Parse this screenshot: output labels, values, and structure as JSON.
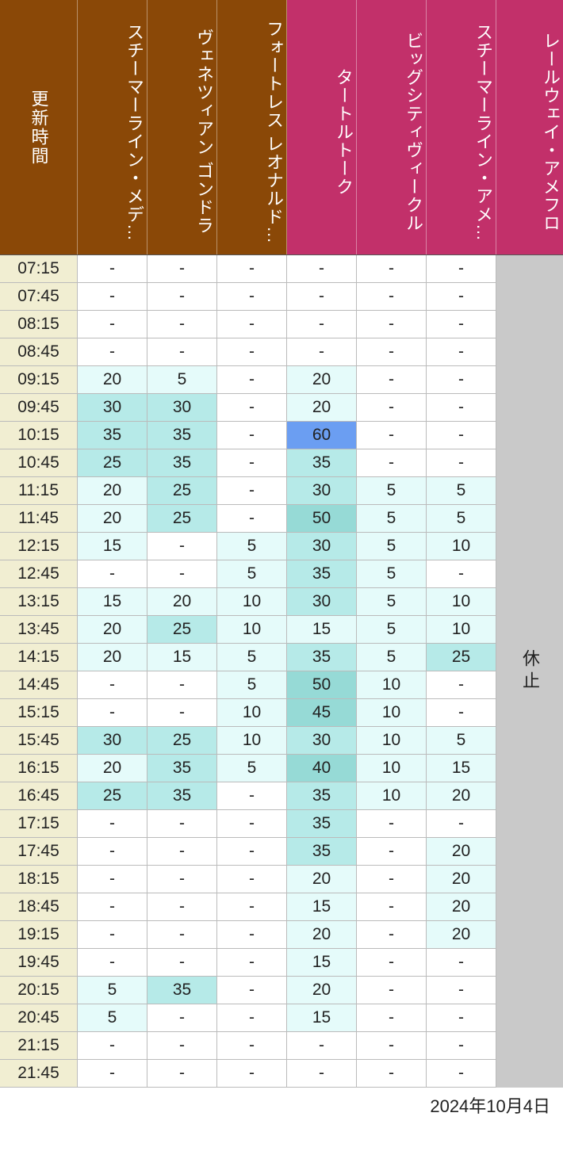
{
  "footer_date": "2024年10月4日",
  "closed_label": "休止",
  "time_header_label": "更新時間",
  "colors": {
    "header_brown": "#8a4807",
    "header_pink": "#c2306a",
    "time_col_bg": "#f1eed2",
    "closed_col_bg": "#c9c9c9",
    "cell_border": "#bbbbbb",
    "white": "#ffffff",
    "tier1": "#e5fbfa",
    "tier2": "#b6eae8",
    "tier3": "#96dad6",
    "highlight_blue": "#6b9ef2"
  },
  "thresholds": {
    "tier1_min": 5,
    "tier1_max": 20,
    "tier2_min": 25,
    "tier2_max": 35,
    "tier3_min": 40,
    "tier3_max": 55,
    "highlight_min": 60
  },
  "attractions": [
    {
      "label": "スチーマーライン・メデ…",
      "header_color": "brown"
    },
    {
      "label": "ヴェネツィアン ゴンドラ",
      "header_color": "brown"
    },
    {
      "label": "フォートレス レオナルド…",
      "header_color": "brown"
    },
    {
      "label": "タートルトーク",
      "header_color": "pink"
    },
    {
      "label": "ビッグシティヴィークル",
      "header_color": "pink"
    },
    {
      "label": "スチーマーライン・アメ…",
      "header_color": "pink"
    },
    {
      "label": "レールウェイ・アメフロ",
      "header_color": "pink",
      "closed": true
    }
  ],
  "rows": [
    {
      "time": "07:15",
      "v": [
        null,
        null,
        null,
        null,
        null,
        null
      ]
    },
    {
      "time": "07:45",
      "v": [
        null,
        null,
        null,
        null,
        null,
        null
      ]
    },
    {
      "time": "08:15",
      "v": [
        null,
        null,
        null,
        null,
        null,
        null
      ]
    },
    {
      "time": "08:45",
      "v": [
        null,
        null,
        null,
        null,
        null,
        null
      ]
    },
    {
      "time": "09:15",
      "v": [
        20,
        5,
        null,
        20,
        null,
        null
      ]
    },
    {
      "time": "09:45",
      "v": [
        30,
        30,
        null,
        20,
        null,
        null
      ]
    },
    {
      "time": "10:15",
      "v": [
        35,
        35,
        null,
        60,
        null,
        null
      ]
    },
    {
      "time": "10:45",
      "v": [
        25,
        35,
        null,
        35,
        null,
        null
      ]
    },
    {
      "time": "11:15",
      "v": [
        20,
        25,
        null,
        30,
        5,
        5
      ]
    },
    {
      "time": "11:45",
      "v": [
        20,
        25,
        null,
        50,
        5,
        5
      ]
    },
    {
      "time": "12:15",
      "v": [
        15,
        null,
        5,
        30,
        5,
        10
      ]
    },
    {
      "time": "12:45",
      "v": [
        null,
        null,
        5,
        35,
        5,
        null
      ]
    },
    {
      "time": "13:15",
      "v": [
        15,
        20,
        10,
        30,
        5,
        10
      ]
    },
    {
      "time": "13:45",
      "v": [
        20,
        25,
        10,
        15,
        5,
        10
      ]
    },
    {
      "time": "14:15",
      "v": [
        20,
        15,
        5,
        35,
        5,
        25
      ]
    },
    {
      "time": "14:45",
      "v": [
        null,
        null,
        5,
        50,
        10,
        null
      ]
    },
    {
      "time": "15:15",
      "v": [
        null,
        null,
        10,
        45,
        10,
        null
      ]
    },
    {
      "time": "15:45",
      "v": [
        30,
        25,
        10,
        30,
        10,
        5
      ]
    },
    {
      "time": "16:15",
      "v": [
        20,
        35,
        5,
        40,
        10,
        15
      ]
    },
    {
      "time": "16:45",
      "v": [
        25,
        35,
        null,
        35,
        10,
        20
      ]
    },
    {
      "time": "17:15",
      "v": [
        null,
        null,
        null,
        35,
        null,
        null
      ]
    },
    {
      "time": "17:45",
      "v": [
        null,
        null,
        null,
        35,
        null,
        20
      ]
    },
    {
      "time": "18:15",
      "v": [
        null,
        null,
        null,
        20,
        null,
        20
      ]
    },
    {
      "time": "18:45",
      "v": [
        null,
        null,
        null,
        15,
        null,
        20
      ]
    },
    {
      "time": "19:15",
      "v": [
        null,
        null,
        null,
        20,
        null,
        20
      ]
    },
    {
      "time": "19:45",
      "v": [
        null,
        null,
        null,
        15,
        null,
        null
      ]
    },
    {
      "time": "20:15",
      "v": [
        5,
        35,
        null,
        20,
        null,
        null
      ]
    },
    {
      "time": "20:45",
      "v": [
        5,
        null,
        null,
        15,
        null,
        null
      ]
    },
    {
      "time": "21:15",
      "v": [
        null,
        null,
        null,
        null,
        null,
        null
      ]
    },
    {
      "time": "21:45",
      "v": [
        null,
        null,
        null,
        null,
        null,
        null
      ]
    }
  ]
}
